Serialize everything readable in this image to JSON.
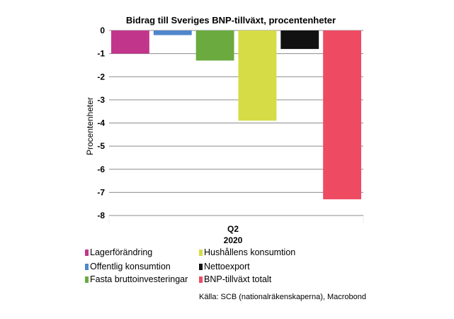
{
  "chart_data": {
    "type": "bar",
    "title": "Bidrag till Sveriges BNP-tillväxt, procentenheter",
    "ylabel": "Procentenheter",
    "xlabel": "",
    "categories": [
      "Q2",
      "2020"
    ],
    "ylim": [
      -8,
      0
    ],
    "yticks": [
      0,
      -1,
      -2,
      -3,
      -4,
      -5,
      -6,
      -7,
      -8
    ],
    "grid": true,
    "legend_position": "bottom",
    "series": [
      {
        "name": "Lagerförändring",
        "value": -1.0,
        "color": "#c1368b"
      },
      {
        "name": "Offentlig konsumtion",
        "value": -0.2,
        "color": "#4f86cc"
      },
      {
        "name": "Fasta bruttoinvesteringar",
        "value": -1.3,
        "color": "#6aaa3f"
      },
      {
        "name": "Hushållens konsumtion",
        "value": -3.9,
        "color": "#d5dc45"
      },
      {
        "name": "Nettoexport",
        "value": -0.8,
        "color": "#111111"
      },
      {
        "name": "BNP-tillväxt totalt",
        "value": -7.3,
        "color": "#ee4b63"
      }
    ],
    "legend_order": [
      0,
      3,
      1,
      4,
      2,
      5
    ],
    "source": "Källa: SCB (nationalräkenskaperna), Macrobond"
  }
}
